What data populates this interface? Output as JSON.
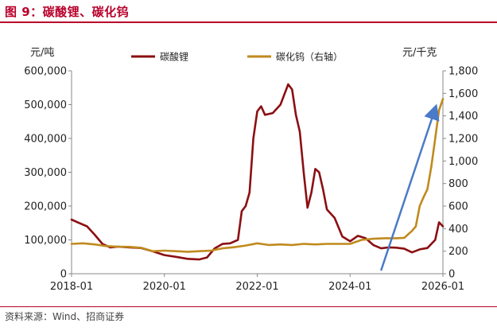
{
  "title": "图 9：碳酸锂、碳化钨",
  "source": "资料来源：Wind、招商证券",
  "colors": {
    "lithium": "#8b0f12",
    "tungsten": "#c08a1e",
    "arrow": "#4a7ac8",
    "title": "#b8002b"
  },
  "chart_data": {
    "type": "line",
    "title": "",
    "left_axis_unit": "元/吨",
    "right_axis_unit": "元/千克",
    "left_ylim": [
      0,
      600000
    ],
    "right_ylim": [
      0,
      1800
    ],
    "left_ticks": [
      "0",
      "100,000",
      "200,000",
      "300,000",
      "400,000",
      "500,000",
      "600,000"
    ],
    "right_ticks": [
      "0",
      "200",
      "400",
      "600",
      "800",
      "1,000",
      "1,200",
      "1,400",
      "1,600",
      "1,800"
    ],
    "x_ticks": [
      "2018-01",
      "2020-01",
      "2022-01",
      "2024-01",
      "2026-01"
    ],
    "legend_position": "top",
    "series": [
      {
        "name": "碳酸锂",
        "axis": "left",
        "points": [
          [
            "2018-01",
            160000
          ],
          [
            "2018-03",
            150000
          ],
          [
            "2018-05",
            140000
          ],
          [
            "2018-07",
            115000
          ],
          [
            "2018-09",
            88000
          ],
          [
            "2018-11",
            78000
          ],
          [
            "2019-01",
            80000
          ],
          [
            "2019-04",
            78000
          ],
          [
            "2019-07",
            76000
          ],
          [
            "2019-10",
            66000
          ],
          [
            "2020-01",
            55000
          ],
          [
            "2020-04",
            50000
          ],
          [
            "2020-07",
            44000
          ],
          [
            "2020-10",
            42000
          ],
          [
            "2020-12",
            48000
          ],
          [
            "2021-02",
            75000
          ],
          [
            "2021-04",
            88000
          ],
          [
            "2021-06",
            90000
          ],
          [
            "2021-08",
            100000
          ],
          [
            "2021-09",
            185000
          ],
          [
            "2021-10",
            200000
          ],
          [
            "2021-11",
            240000
          ],
          [
            "2021-12",
            400000
          ],
          [
            "2022-01",
            480000
          ],
          [
            "2022-02",
            495000
          ],
          [
            "2022-03",
            470000
          ],
          [
            "2022-05",
            475000
          ],
          [
            "2022-07",
            500000
          ],
          [
            "2022-09",
            560000
          ],
          [
            "2022-10",
            545000
          ],
          [
            "2022-11",
            470000
          ],
          [
            "2022-12",
            420000
          ],
          [
            "2023-01",
            300000
          ],
          [
            "2023-02",
            195000
          ],
          [
            "2023-03",
            240000
          ],
          [
            "2023-04",
            310000
          ],
          [
            "2023-05",
            300000
          ],
          [
            "2023-06",
            250000
          ],
          [
            "2023-07",
            190000
          ],
          [
            "2023-09",
            165000
          ],
          [
            "2023-11",
            110000
          ],
          [
            "2024-01",
            96000
          ],
          [
            "2024-03",
            112000
          ],
          [
            "2024-05",
            105000
          ],
          [
            "2024-07",
            85000
          ],
          [
            "2024-09",
            75000
          ],
          [
            "2024-11",
            78000
          ],
          [
            "2025-01",
            77000
          ],
          [
            "2025-03",
            74000
          ],
          [
            "2025-05",
            63000
          ],
          [
            "2025-07",
            72000
          ],
          [
            "2025-09",
            76000
          ],
          [
            "2025-11",
            100000
          ],
          [
            "2025-12",
            152000
          ],
          [
            "2026-01",
            140000
          ]
        ]
      },
      {
        "name": "碳化钨（右轴）",
        "axis": "right",
        "points": [
          [
            "2018-01",
            265
          ],
          [
            "2018-04",
            270
          ],
          [
            "2018-07",
            260
          ],
          [
            "2018-10",
            245
          ],
          [
            "2019-01",
            240
          ],
          [
            "2019-04",
            238
          ],
          [
            "2019-07",
            230
          ],
          [
            "2019-10",
            200
          ],
          [
            "2020-01",
            205
          ],
          [
            "2020-04",
            200
          ],
          [
            "2020-07",
            195
          ],
          [
            "2020-10",
            200
          ],
          [
            "2021-01",
            205
          ],
          [
            "2021-04",
            225
          ],
          [
            "2021-07",
            235
          ],
          [
            "2021-10",
            250
          ],
          [
            "2022-01",
            270
          ],
          [
            "2022-04",
            255
          ],
          [
            "2022-07",
            260
          ],
          [
            "2022-10",
            255
          ],
          [
            "2023-01",
            265
          ],
          [
            "2023-04",
            260
          ],
          [
            "2023-07",
            265
          ],
          [
            "2023-10",
            265
          ],
          [
            "2024-01",
            265
          ],
          [
            "2024-04",
            300
          ],
          [
            "2024-07",
            310
          ],
          [
            "2024-10",
            315
          ],
          [
            "2025-01",
            315
          ],
          [
            "2025-03",
            318
          ],
          [
            "2025-05",
            380
          ],
          [
            "2025-06",
            420
          ],
          [
            "2025-07",
            600
          ],
          [
            "2025-08",
            680
          ],
          [
            "2025-09",
            750
          ],
          [
            "2025-10",
            950
          ],
          [
            "2025-11",
            1200
          ],
          [
            "2025-12",
            1450
          ],
          [
            "2026-01",
            1550
          ]
        ]
      }
    ],
    "annotation": "upward-arrow"
  }
}
